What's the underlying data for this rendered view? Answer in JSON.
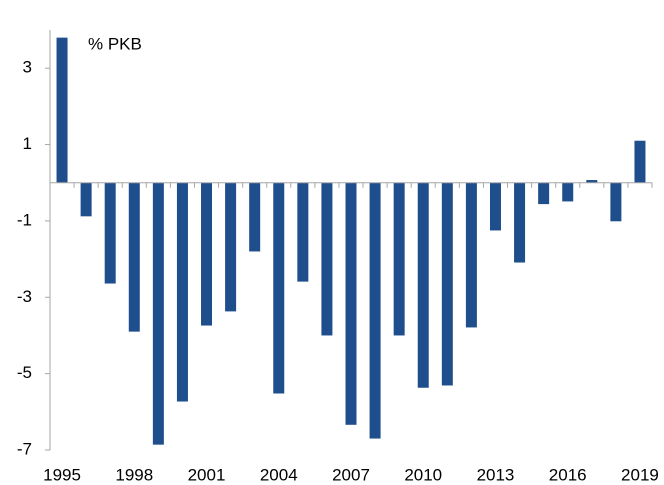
{
  "chart_data": {
    "type": "bar",
    "y_label": "% PKB",
    "categories": [
      "1995",
      null,
      null,
      "1998",
      null,
      null,
      "2001",
      null,
      null,
      "2004",
      null,
      null,
      "2007",
      null,
      null,
      "2010",
      null,
      null,
      "2013",
      null,
      null,
      "2016",
      null,
      null,
      "2019"
    ],
    "values": [
      3.8,
      -0.88,
      -2.64,
      -3.9,
      -6.86,
      -5.73,
      -3.74,
      -3.37,
      -1.8,
      -5.52,
      -2.59,
      -4.0,
      -6.34,
      -6.7,
      -4.0,
      -5.37,
      -5.31,
      -3.79,
      -1.25,
      -2.09,
      -0.56,
      -0.49,
      0.07,
      -1.01,
      1.1
    ],
    "color": "#1f4e8c",
    "ylim": [
      -7,
      4
    ],
    "yticks": [
      3,
      1,
      -1,
      -3,
      -5,
      -7
    ],
    "grid": false
  }
}
